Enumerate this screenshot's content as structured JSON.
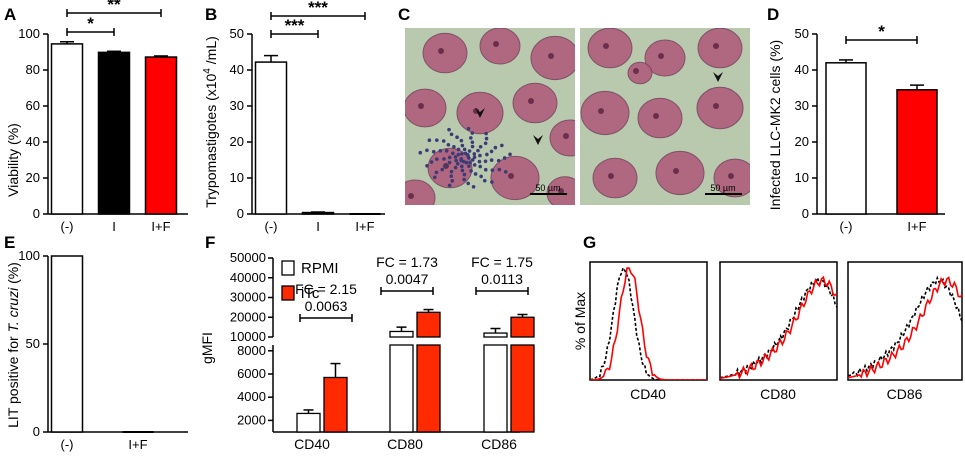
{
  "panels": {
    "A": "A",
    "B": "B",
    "C": "C",
    "D": "D",
    "E": "E",
    "F": "F",
    "G": "G"
  },
  "colors": {
    "white": "#ffffff",
    "black": "#000000",
    "red": "#ff0000",
    "itc_red": "#ff2a00",
    "micrograph_bg": "#b8c9ad",
    "nucleus": "#b05d7c",
    "parasite": "#3b3b77"
  },
  "chart_data": [
    {
      "panel": "A",
      "type": "bar",
      "categories": [
        "(-)",
        "I",
        "I+F"
      ],
      "values": [
        94.5,
        89.8,
        87.2
      ],
      "errors": [
        1.2,
        0.6,
        0.6
      ],
      "bar_colors": [
        "#ffffff",
        "#000000",
        "#ff0000"
      ],
      "ylabel": "Viability  (%)",
      "ylim": [
        0,
        100
      ],
      "yticks": [
        "0",
        "20",
        "40",
        "60",
        "80",
        "100"
      ],
      "significance": [
        {
          "from": "(-)",
          "to": "I",
          "label": "*"
        },
        {
          "from": "(-)",
          "to": "I+F",
          "label": "**"
        }
      ]
    },
    {
      "panel": "B",
      "type": "bar",
      "categories": [
        "(-)",
        "I",
        "I+F"
      ],
      "values": [
        42.2,
        0.4,
        0.0
      ],
      "errors": [
        1.8,
        0.15,
        0
      ],
      "ylabel": "Trypomastigotes (x10 4 /mL)",
      "ylabel_main": "Trypomastigotes (x10",
      "ylabel_sup": "4",
      "ylabel_tail": " /mL)",
      "ylim": [
        0,
        50
      ],
      "yticks": [
        "0",
        "10",
        "20",
        "30",
        "40",
        "50"
      ],
      "significance": [
        {
          "from": "(-)",
          "to": "I",
          "label": "***"
        },
        {
          "from": "(-)",
          "to": "I+F",
          "label": "***"
        }
      ]
    },
    {
      "panel": "D",
      "type": "bar",
      "categories": [
        "(-)",
        "I+F"
      ],
      "values": [
        42.0,
        34.5
      ],
      "errors": [
        0.8,
        1.3
      ],
      "bar_colors": [
        "#ffffff",
        "#ff0000"
      ],
      "ylabel": "Infected LLC-MK2 cells  (%)",
      "ylim": [
        0,
        50
      ],
      "yticks": [
        "0",
        "10",
        "20",
        "30",
        "40",
        "50"
      ],
      "significance": [
        {
          "from": "(-)",
          "to": "I+F",
          "label": "*"
        }
      ]
    },
    {
      "panel": "E",
      "type": "bar",
      "categories": [
        "(-)",
        "I+F"
      ],
      "values": [
        100,
        0
      ],
      "ylabel_main": "LIT positive for ",
      "ylabel_italic": "T. cruzi",
      "ylabel_tail": " (%)",
      "ylim": [
        0,
        100
      ],
      "yticks": [
        "0",
        "50",
        "100"
      ]
    },
    {
      "panel": "F",
      "type": "bar",
      "categories": [
        "CD40",
        "CD80",
        "CD86"
      ],
      "series": [
        {
          "name": "RPMI",
          "values": [
            2600,
            12800,
            12000
          ],
          "errors": [
            300,
            2200,
            2300
          ],
          "color": "#ffffff"
        },
        {
          "name": "iTc",
          "values": [
            5700,
            22500,
            20000
          ],
          "errors": [
            1200,
            1400,
            1400
          ],
          "color": "#ff2a00"
        }
      ],
      "ylabel": "gMFI",
      "axis_break": true,
      "ylim_lower": [
        1000,
        8500
      ],
      "ylim_upper": [
        10000,
        50000
      ],
      "yticks_lower": [
        "2000",
        "4000",
        "6000",
        "8000"
      ],
      "yticks_upper": [
        "10000",
        "20000",
        "30000",
        "40000",
        "50000"
      ],
      "annotations": [
        {
          "category": "CD40",
          "fc": "FC = 2.15",
          "p": "0.0063"
        },
        {
          "category": "CD80",
          "fc": "FC = 1.73",
          "p": "0.0047"
        },
        {
          "category": "CD86",
          "fc": "FC = 1.75",
          "p": "0.0113"
        }
      ]
    },
    {
      "panel": "G",
      "type": "line",
      "ylabel": "% of Max",
      "plots": [
        {
          "xlabel": "CD40",
          "series": [
            {
              "style": "dotted",
              "color": "#000000",
              "peak": 0.28
            },
            {
              "style": "solid",
              "color": "#ff0000",
              "peak": 0.33
            }
          ]
        },
        {
          "xlabel": "CD80",
          "series": [
            {
              "style": "dotted",
              "color": "#000000",
              "peak": 0.85
            },
            {
              "style": "solid",
              "color": "#ff0000",
              "peak": 0.88
            }
          ]
        },
        {
          "xlabel": "CD86",
          "series": [
            {
              "style": "dotted",
              "color": "#000000",
              "peak": 0.8
            },
            {
              "style": "solid",
              "color": "#ff0000",
              "peak": 0.87
            }
          ]
        }
      ]
    }
  ],
  "micrograph": {
    "scale_left": "50 µm",
    "scale_right": "50 µm"
  }
}
